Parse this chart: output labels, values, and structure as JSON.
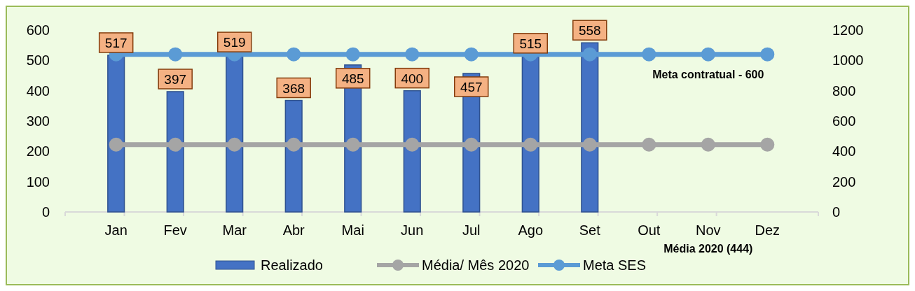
{
  "chart_data": {
    "type": "bar",
    "categories": [
      "Jan",
      "Fev",
      "Mar",
      "Abr",
      "Mai",
      "Jun",
      "Jul",
      "Ago",
      "Set",
      "Out",
      "Nov",
      "Dez"
    ],
    "series": [
      {
        "name": "Realizado",
        "color": "#4472c4",
        "values": [
          517,
          397,
          519,
          368,
          485,
          400,
          457,
          515,
          558,
          null,
          null,
          null
        ],
        "value_labels": [
          "517",
          "397",
          "519",
          "368",
          "485",
          "400",
          "457",
          "515",
          "558",
          null,
          null,
          null
        ]
      },
      {
        "name": "Média/ Mês 2020",
        "type": "line",
        "axis": "y2",
        "color": "#a5a5a5",
        "values": [
          444,
          444,
          444,
          444,
          444,
          444,
          444,
          444,
          444,
          444,
          444,
          444
        ]
      },
      {
        "name": "Meta SES",
        "type": "line",
        "axis": "y2",
        "color": "#5b9bd5",
        "values": [
          1040,
          1040,
          1040,
          1040,
          1040,
          1040,
          1040,
          1040,
          1040,
          1040,
          1040,
          1040
        ]
      }
    ],
    "ylim": [
      0,
      600
    ],
    "yticks": [
      0,
      100,
      200,
      300,
      400,
      500,
      600
    ],
    "y2lim": [
      0,
      1200
    ],
    "y2ticks": [
      0,
      200,
      400,
      600,
      800,
      1000,
      1200
    ],
    "marker": "circle",
    "legend": "bottom",
    "grid": false,
    "annotations": [
      "Meta contratual - 600",
      "Média 2020 (444)"
    ]
  }
}
